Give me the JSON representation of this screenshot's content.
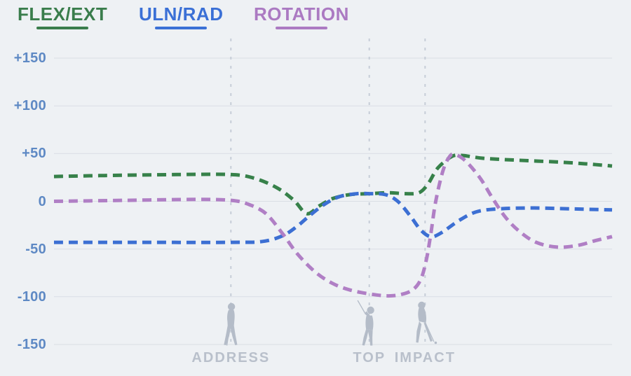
{
  "legend": {
    "items": [
      {
        "id": "flex-ext",
        "label": "FLEX/EXT",
        "color": "#3a7d4c"
      },
      {
        "id": "uln-rad",
        "label": "ULN/RAD",
        "color": "#3b70d6"
      },
      {
        "id": "rotation",
        "label": "ROTATION",
        "color": "#ab7ac2"
      }
    ]
  },
  "chart_data": {
    "type": "line",
    "line_style": "dashed",
    "grid": "horizontal",
    "legend_position": "top-left",
    "x_range": [
      0,
      100
    ],
    "ylim": [
      -150,
      150
    ],
    "y_ticks": [
      "+150",
      "+100",
      "+50",
      "0",
      "-50",
      "-100",
      "-150"
    ],
    "y_tick_values": [
      150,
      100,
      50,
      0,
      -50,
      -100,
      -150
    ],
    "phases": [
      {
        "label": "ADDRESS",
        "x": 31.7
      },
      {
        "label": "TOP",
        "x": 56.5
      },
      {
        "label": "IMPACT",
        "x": 66.5
      }
    ],
    "series": [
      {
        "id": "flex-ext",
        "name": "FLEX/EXT",
        "color": "#37814a",
        "points": [
          [
            0,
            26
          ],
          [
            9,
            27
          ],
          [
            22,
            28
          ],
          [
            31.7,
            28
          ],
          [
            36,
            24
          ],
          [
            40,
            14
          ],
          [
            43,
            1
          ],
          [
            45.3,
            -13
          ],
          [
            47.5,
            -5
          ],
          [
            50,
            3
          ],
          [
            53,
            7
          ],
          [
            56.5,
            8
          ],
          [
            60,
            9
          ],
          [
            63,
            8
          ],
          [
            65.4,
            9
          ],
          [
            67,
            18
          ],
          [
            68.8,
            35
          ],
          [
            71.3,
            47
          ],
          [
            73.2,
            48
          ],
          [
            77,
            45
          ],
          [
            83.3,
            43
          ],
          [
            90.8,
            41
          ],
          [
            95.8,
            39
          ],
          [
            100,
            37
          ]
        ]
      },
      {
        "id": "uln-rad",
        "name": "ULN/RAD",
        "color": "#3c6fd3",
        "points": [
          [
            0,
            -43
          ],
          [
            15,
            -43
          ],
          [
            31.7,
            -43
          ],
          [
            37.4,
            -42
          ],
          [
            41,
            -36
          ],
          [
            43.6,
            -26
          ],
          [
            45.8,
            -15
          ],
          [
            48.5,
            -3
          ],
          [
            51.2,
            5
          ],
          [
            54.3,
            8
          ],
          [
            56.5,
            8
          ],
          [
            59.4,
            7
          ],
          [
            61.6,
            0
          ],
          [
            63.8,
            -15
          ],
          [
            65.7,
            -30
          ],
          [
            67.5,
            -37
          ],
          [
            69.4,
            -33
          ],
          [
            72.6,
            -20
          ],
          [
            75.7,
            -11
          ],
          [
            79.5,
            -8
          ],
          [
            85.8,
            -7
          ],
          [
            93.3,
            -8
          ],
          [
            100,
            -9
          ]
        ]
      },
      {
        "id": "rotation",
        "name": "ROTATION",
        "color": "#b07fc5",
        "points": [
          [
            0,
            0
          ],
          [
            12.8,
            1
          ],
          [
            25.4,
            2
          ],
          [
            31.7,
            1
          ],
          [
            34.8,
            -3
          ],
          [
            38,
            -13
          ],
          [
            41.1,
            -35
          ],
          [
            43.6,
            -55
          ],
          [
            46.8,
            -74
          ],
          [
            49.9,
            -86
          ],
          [
            53.1,
            -93
          ],
          [
            56.5,
            -97
          ],
          [
            59.4,
            -99
          ],
          [
            61.9,
            -98
          ],
          [
            64.2,
            -93
          ],
          [
            65.7,
            -82
          ],
          [
            66.7,
            -62
          ],
          [
            67.5,
            -35
          ],
          [
            68.4,
            0
          ],
          [
            69.7,
            32
          ],
          [
            70.9,
            47
          ],
          [
            71.9,
            49
          ],
          [
            73.8,
            42
          ],
          [
            76.4,
            24
          ],
          [
            78.5,
            4
          ],
          [
            80.8,
            -16
          ],
          [
            83.3,
            -31
          ],
          [
            86.4,
            -43
          ],
          [
            90.2,
            -48
          ],
          [
            94,
            -46
          ],
          [
            97.1,
            -41
          ],
          [
            100,
            -37
          ]
        ]
      }
    ]
  },
  "colors": {
    "background": "#eef1f4",
    "gridline": "#d9dee5",
    "phase_line": "#c6cdd7",
    "axis_label": "#5e89c4",
    "phase_label": "#b9c0cb",
    "golfer": "#b4bcc8"
  }
}
